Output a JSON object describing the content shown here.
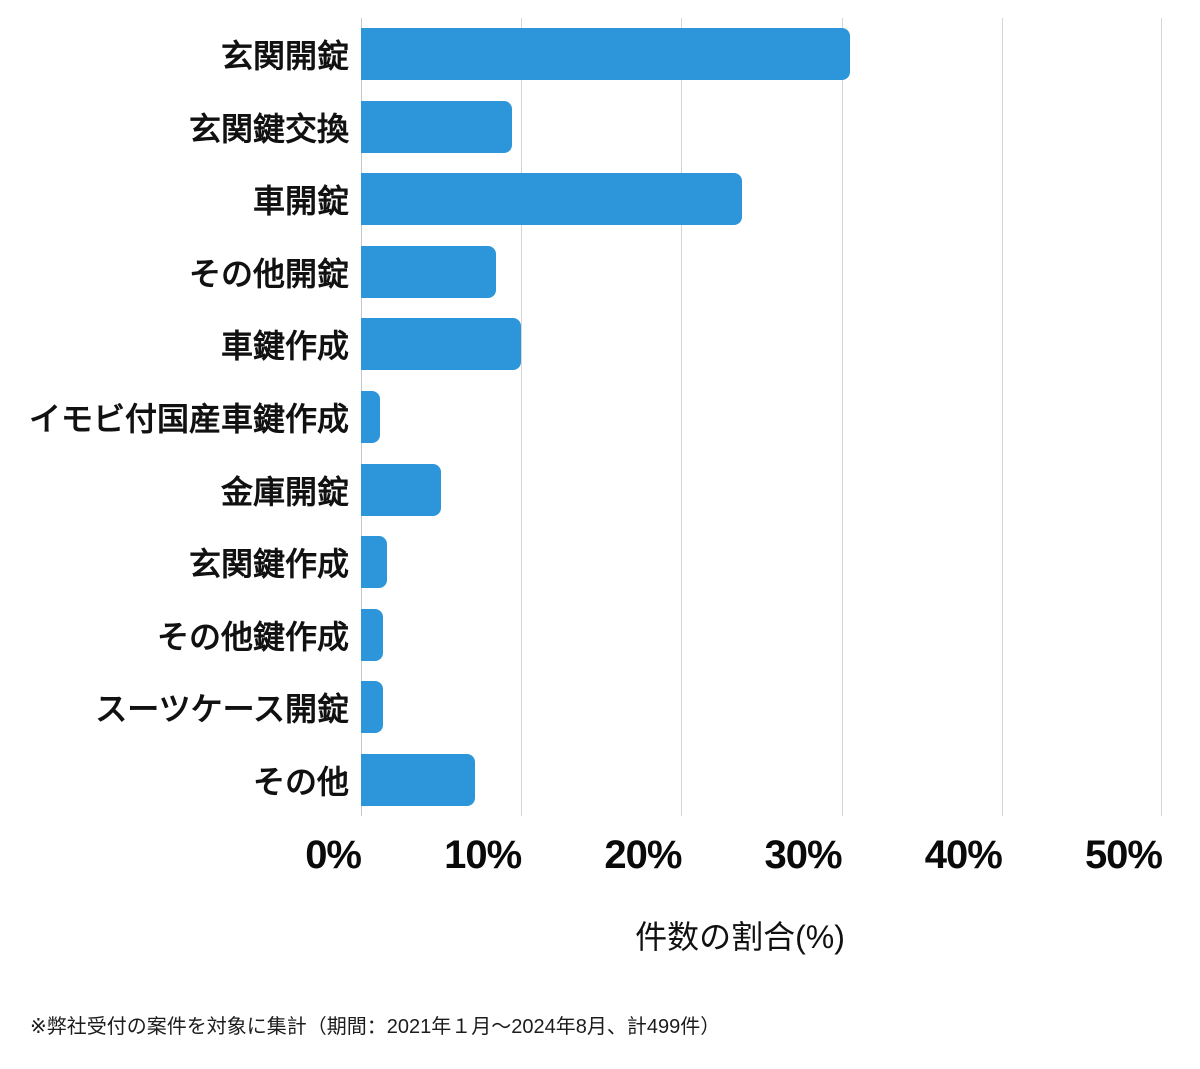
{
  "chart_data": {
    "type": "bar",
    "orientation": "horizontal",
    "title": "",
    "categories": [
      "玄関開錠",
      "玄関鍵交換",
      "車開錠",
      "その他開錠",
      "車鍵作成",
      "イモビ付国産車鍵作成",
      "金庫開錠",
      "玄関鍵作成",
      "その他鍵作成",
      "スーツケース開錠",
      "その他"
    ],
    "values": [
      30.5,
      9.4,
      23.8,
      8.4,
      10.0,
      1.2,
      5.0,
      1.6,
      1.4,
      1.4,
      7.1
    ],
    "xlabel": "件数の割合(%)",
    "ylabel": "",
    "xlim": [
      0,
      50
    ],
    "x_ticks": [
      "0%",
      "10%",
      "20%",
      "30%",
      "40%",
      "50%"
    ],
    "x_tick_values": [
      0,
      10,
      20,
      30,
      40,
      50
    ],
    "grid": true,
    "legend": "none",
    "bar_color": "#2d96db",
    "gridline_color": "#d5d5d5",
    "text_color": "#111111"
  },
  "footnote": "※弊社受付の案件を対象に集計（期間：2021年１月～2024年8月、計499件）"
}
